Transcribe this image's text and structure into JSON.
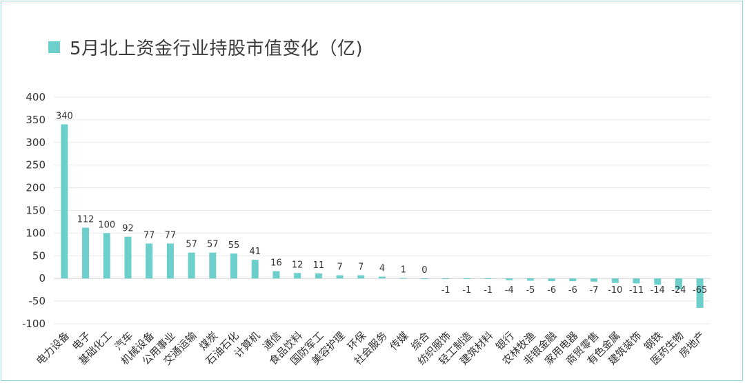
{
  "title": "5月北上资金行业持股市值变化（亿)",
  "colors": {
    "bar": "#6ccfcc",
    "grid": "#e8e8e8",
    "axis": "#d0d0d0",
    "text": "#333333"
  },
  "chart_data": {
    "type": "bar",
    "title": "5月北上资金行业持股市值变化（亿)",
    "xlabel": "",
    "ylabel": "",
    "ylim": [
      -100,
      400
    ],
    "yticks": [
      400,
      350,
      300,
      250,
      200,
      150,
      100,
      50,
      0,
      -50,
      -100
    ],
    "grid": true,
    "legend": "top-left",
    "categories": [
      "电力设备",
      "电子",
      "基础化工",
      "汽车",
      "机械设备",
      "公用事业",
      "交通运输",
      "煤炭",
      "石油石化",
      "计算机",
      "通信",
      "食品饮料",
      "国防军工",
      "美容护理",
      "环保",
      "社会服务",
      "传媒",
      "综合",
      "纺织服饰",
      "轻工制造",
      "建筑材料",
      "银行",
      "农林牧渔",
      "非银金融",
      "家用电器",
      "商贸零售",
      "有色金属",
      "建筑装饰",
      "钢铁",
      "医药生物",
      "房地产"
    ],
    "values": [
      340,
      112,
      100,
      92,
      77,
      77,
      57,
      57,
      55,
      41,
      16,
      12,
      11,
      7,
      7,
      4,
      1,
      0,
      -1,
      -1,
      -1,
      -4,
      -5,
      -6,
      -6,
      -7,
      -10,
      -11,
      -14,
      -24,
      -65
    ],
    "data_labels": [
      "340",
      "112",
      "100",
      "92",
      "77",
      "77",
      "57",
      "57",
      "55",
      "41",
      "16",
      "12",
      "11",
      "7",
      "7",
      "4",
      "1",
      "0",
      "-1",
      "-1",
      "-1",
      "-4",
      "-5",
      "-6",
      "-6",
      "-7",
      "-10",
      "-11",
      "-14",
      "-24",
      "-65"
    ]
  }
}
